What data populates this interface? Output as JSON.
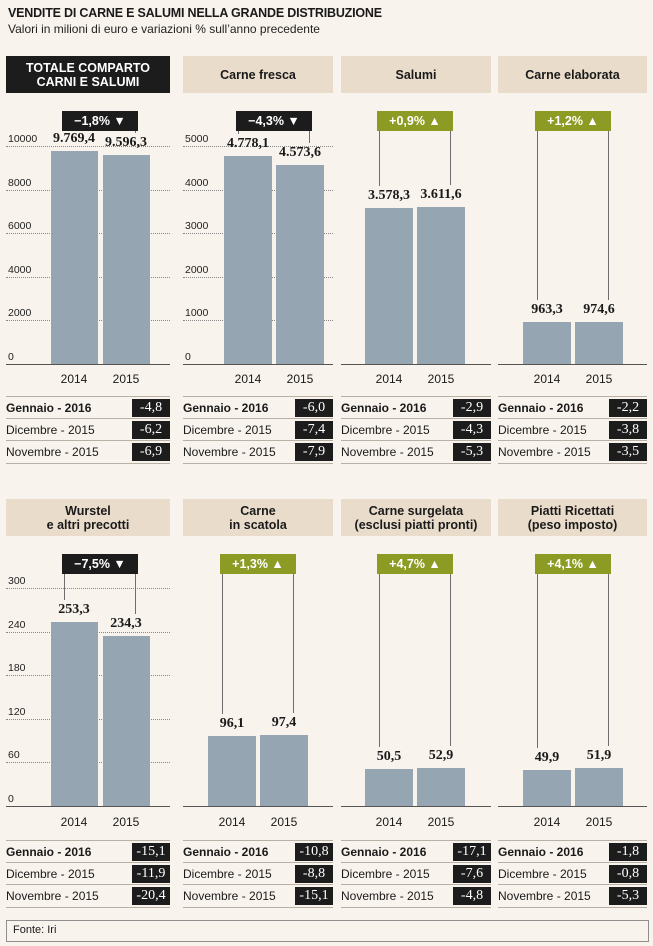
{
  "header": {
    "title": "VENDITE DI CARNE E SALUMI NELLA GRANDE DISTRIBUZIONE",
    "subtitle": "Valori in milioni di euro e variazioni % sull’anno precedente"
  },
  "footer": {
    "source": "Fonte: Iri"
  },
  "chart_data": [
    {
      "type": "bar",
      "title": "TOTALE COMPARTO\nCARNI E SALUMI",
      "categories": [
        "2014",
        "2015"
      ],
      "values": [
        9769.4,
        9596.3
      ],
      "value_labels": [
        "9.769,4",
        "9.596,3"
      ],
      "ylim": [
        0,
        10000
      ],
      "yticks": [
        0,
        2000,
        4000,
        6000,
        8000,
        10000
      ],
      "change": {
        "label": "−1,8% ▼",
        "dir": "neg"
      },
      "table": [
        {
          "label": "Gennaio - 2016",
          "value": "-4,8"
        },
        {
          "label": "Dicembre - 2015",
          "value": "-6,2"
        },
        {
          "label": "Novembre - 2015",
          "value": "-6,9"
        }
      ]
    },
    {
      "type": "bar",
      "title": "Carne fresca",
      "categories": [
        "2014",
        "2015"
      ],
      "values": [
        4778.1,
        4573.6
      ],
      "value_labels": [
        "4.778,1",
        "4.573,6"
      ],
      "ylim": [
        0,
        5000
      ],
      "yticks": [
        0,
        1000,
        2000,
        3000,
        4000,
        5000
      ],
      "change": {
        "label": "−4,3% ▼",
        "dir": "neg"
      },
      "table": [
        {
          "label": "Gennaio - 2016",
          "value": "-6,0"
        },
        {
          "label": "Dicembre - 2015",
          "value": "-7,4"
        },
        {
          "label": "Novembre - 2015",
          "value": "-7,9"
        }
      ]
    },
    {
      "type": "bar",
      "title": "Salumi",
      "categories": [
        "2014",
        "2015"
      ],
      "values": [
        3578.3,
        3611.6
      ],
      "value_labels": [
        "3.578,3",
        "3.611,6"
      ],
      "ylim": [
        0,
        5000
      ],
      "yticks": [],
      "change": {
        "label": "+0,9% ▲",
        "dir": "pos"
      },
      "table": [
        {
          "label": "Gennaio - 2016",
          "value": "-2,9"
        },
        {
          "label": "Dicembre - 2015",
          "value": "-4,3"
        },
        {
          "label": "Novembre - 2015",
          "value": "-5,3"
        }
      ]
    },
    {
      "type": "bar",
      "title": "Carne elaborata",
      "categories": [
        "2014",
        "2015"
      ],
      "values": [
        963.3,
        974.6
      ],
      "value_labels": [
        "963,3",
        "974,6"
      ],
      "ylim": [
        0,
        5000
      ],
      "yticks": [],
      "change": {
        "label": "+1,2% ▲",
        "dir": "pos"
      },
      "table": [
        {
          "label": "Gennaio - 2016",
          "value": "-2,2"
        },
        {
          "label": "Dicembre - 2015",
          "value": "-3,8"
        },
        {
          "label": "Novembre - 2015",
          "value": "-3,5"
        }
      ]
    },
    {
      "type": "bar",
      "title": "Wurstel\ne altri precotti",
      "categories": [
        "2014",
        "2015"
      ],
      "values": [
        253.3,
        234.3
      ],
      "value_labels": [
        "253,3",
        "234,3"
      ],
      "ylim": [
        0,
        300
      ],
      "yticks": [
        0,
        60,
        120,
        180,
        240,
        300
      ],
      "change": {
        "label": "−7,5% ▼",
        "dir": "neg"
      },
      "table": [
        {
          "label": "Gennaio - 2016",
          "value": "-15,1"
        },
        {
          "label": "Dicembre - 2015",
          "value": "-11,9"
        },
        {
          "label": "Novembre - 2015",
          "value": "-20,4"
        }
      ]
    },
    {
      "type": "bar",
      "title": "Carne\nin scatola",
      "categories": [
        "2014",
        "2015"
      ],
      "values": [
        96.1,
        97.4
      ],
      "value_labels": [
        "96,1",
        "97,4"
      ],
      "ylim": [
        0,
        300
      ],
      "yticks": [],
      "change": {
        "label": "+1,3% ▲",
        "dir": "pos"
      },
      "table": [
        {
          "label": "Gennaio - 2016",
          "value": "-10,8"
        },
        {
          "label": "Dicembre - 2015",
          "value": "-8,8"
        },
        {
          "label": "Novembre - 2015",
          "value": "-15,1"
        }
      ]
    },
    {
      "type": "bar",
      "title": "Carne surgelata\n(esclusi piatti pronti)",
      "categories": [
        "2014",
        "2015"
      ],
      "values": [
        50.5,
        52.9
      ],
      "value_labels": [
        "50,5",
        "52,9"
      ],
      "ylim": [
        0,
        300
      ],
      "yticks": [],
      "change": {
        "label": "+4,7% ▲",
        "dir": "pos"
      },
      "table": [
        {
          "label": "Gennaio - 2016",
          "value": "-17,1"
        },
        {
          "label": "Dicembre - 2015",
          "value": "-7,6"
        },
        {
          "label": "Novembre - 2015",
          "value": "-4,8"
        }
      ]
    },
    {
      "type": "bar",
      "title": "Piatti Ricettati\n(peso imposto)",
      "categories": [
        "2014",
        "2015"
      ],
      "values": [
        49.9,
        51.9
      ],
      "value_labels": [
        "49,9",
        "51,9"
      ],
      "ylim": [
        0,
        300
      ],
      "yticks": [],
      "change": {
        "label": "+4,1% ▲",
        "dir": "pos"
      },
      "table": [
        {
          "label": "Gennaio - 2016",
          "value": "-1,8"
        },
        {
          "label": "Dicembre - 2015",
          "value": "-0,8"
        },
        {
          "label": "Novembre - 2015",
          "value": "-5,3"
        }
      ]
    }
  ]
}
